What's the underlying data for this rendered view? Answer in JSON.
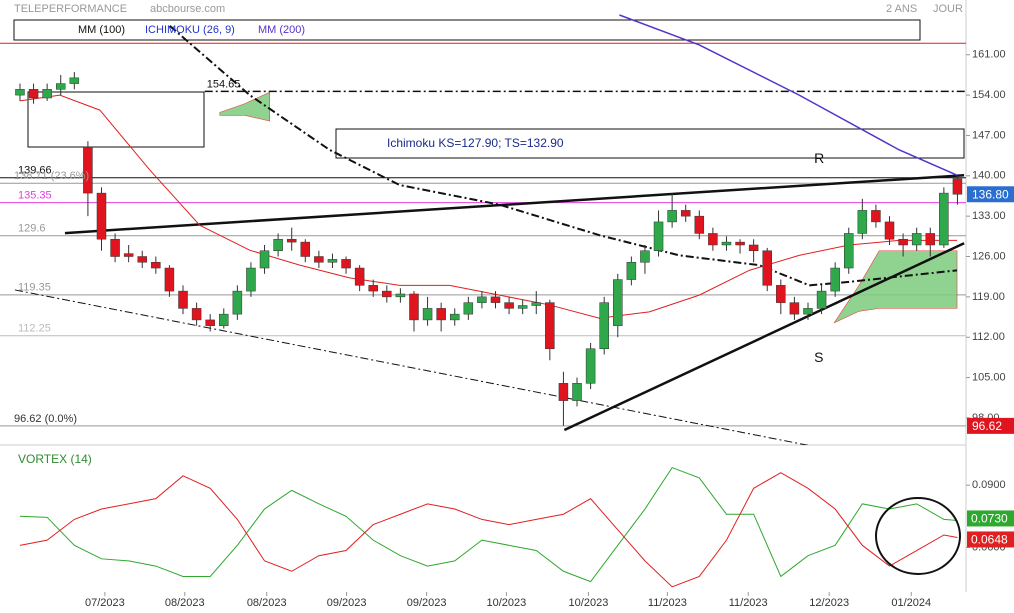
{
  "header": {
    "title": "TELEPERFORMANCE",
    "source": "abcbourse.com",
    "range": "2 ANS",
    "period": "JOUR"
  },
  "chart_data": [
    {
      "type": "candlestick",
      "up_color": "#2ea84a",
      "down_color": "#e0141e",
      "xlim": [
        -1.47,
        69.63
      ],
      "ylim": [
        93.3,
        170.5
      ],
      "yticks": [
        {
          "value": 161,
          "label": "161.00"
        },
        {
          "value": 154,
          "label": "154.00"
        },
        {
          "value": 147,
          "label": "147.00"
        },
        {
          "value": 140,
          "label": "140.00"
        },
        {
          "value": 133,
          "label": "133.00"
        },
        {
          "value": 126,
          "label": "126.00"
        },
        {
          "value": 119,
          "label": "119.00"
        },
        {
          "value": 112,
          "label": "112.00"
        },
        {
          "value": 105,
          "label": "105.00"
        },
        {
          "value": 98,
          "label": "98.00"
        }
      ],
      "xticks": [
        {
          "value": 6.25,
          "label": "07/2023"
        },
        {
          "value": 12.13,
          "label": "08/2023"
        },
        {
          "value": 18.16,
          "label": "08/2023"
        },
        {
          "value": 24.04,
          "label": "09/2023"
        },
        {
          "value": 29.93,
          "label": "09/2023"
        },
        {
          "value": 35.8,
          "label": "10/2023"
        },
        {
          "value": 41.84,
          "label": "10/2023"
        },
        {
          "value": 47.65,
          "label": "11/2023"
        },
        {
          "value": 53.6,
          "label": "11/2023"
        },
        {
          "value": 59.56,
          "label": "12/2023"
        },
        {
          "value": 65.6,
          "label": "01/2024"
        }
      ],
      "ohlc": [
        [
          154,
          156,
          153,
          155
        ],
        [
          155,
          156,
          152.5,
          153.5
        ],
        [
          153.5,
          156,
          153,
          155
        ],
        [
          155,
          157.5,
          154,
          156
        ],
        [
          156,
          158,
          155,
          157
        ],
        [
          145,
          146,
          133,
          137
        ],
        [
          137,
          138,
          127,
          129
        ],
        [
          129,
          130,
          125,
          126
        ],
        [
          126.5,
          128,
          125,
          126
        ],
        [
          126,
          127,
          124,
          125
        ],
        [
          125,
          126,
          123,
          124
        ],
        [
          124,
          124.5,
          119,
          120
        ],
        [
          120,
          121,
          116,
          117
        ],
        [
          117,
          118,
          114,
          115
        ],
        [
          115,
          116,
          113,
          114
        ],
        [
          114,
          117,
          113.5,
          116
        ],
        [
          116,
          121,
          115,
          120
        ],
        [
          120,
          125,
          119,
          124
        ],
        [
          124,
          128,
          123,
          127
        ],
        [
          127,
          130,
          126,
          129
        ],
        [
          129,
          131,
          127,
          128.5
        ],
        [
          128.5,
          129,
          125,
          126
        ],
        [
          126,
          127,
          124,
          125
        ],
        [
          125,
          126.5,
          124,
          125.5
        ],
        [
          125.5,
          126,
          123,
          124
        ],
        [
          124,
          124.5,
          120,
          121
        ],
        [
          121,
          122,
          119,
          120
        ],
        [
          120,
          121,
          118,
          119
        ],
        [
          119,
          120.5,
          118,
          119.5
        ],
        [
          119.5,
          120,
          113,
          115
        ],
        [
          115,
          119,
          114,
          117
        ],
        [
          117,
          118,
          113,
          115
        ],
        [
          115,
          117,
          114,
          116
        ],
        [
          116,
          119,
          115,
          118
        ],
        [
          118,
          120,
          117,
          119
        ],
        [
          119,
          120,
          117,
          118
        ],
        [
          118,
          119,
          116,
          117
        ],
        [
          117,
          118.5,
          116,
          117.5
        ],
        [
          117.5,
          120,
          116,
          118
        ],
        [
          118,
          118.5,
          108,
          110
        ],
        [
          104,
          106,
          96.62,
          101
        ],
        [
          101,
          105,
          100,
          104
        ],
        [
          104,
          111,
          103,
          110
        ],
        [
          110,
          119,
          109,
          118
        ],
        [
          114,
          123,
          112,
          122
        ],
        [
          122,
          126,
          121,
          125
        ],
        [
          125,
          128,
          123,
          127
        ],
        [
          127,
          134,
          126,
          132
        ],
        [
          132,
          137,
          131,
          134
        ],
        [
          134,
          135,
          132,
          133
        ],
        [
          133,
          134,
          129,
          130
        ],
        [
          130,
          131,
          127,
          128
        ],
        [
          128,
          129.5,
          127,
          128.5
        ],
        [
          128.5,
          129,
          126.5,
          128
        ],
        [
          128,
          129,
          125,
          127
        ],
        [
          127,
          127.5,
          120,
          121
        ],
        [
          121,
          122,
          116,
          118
        ],
        [
          118,
          119,
          115,
          116
        ],
        [
          116,
          118,
          115,
          117
        ],
        [
          117,
          121,
          116,
          120
        ],
        [
          120,
          125,
          119,
          124
        ],
        [
          124,
          131,
          123,
          130
        ],
        [
          130,
          136,
          129,
          134
        ],
        [
          134,
          135,
          131,
          132
        ],
        [
          132,
          133,
          128,
          129
        ],
        [
          129,
          130,
          126,
          128
        ],
        [
          128,
          131,
          127,
          130
        ],
        [
          130,
          131,
          126,
          128
        ],
        [
          128,
          138,
          127.5,
          137
        ],
        [
          139.5,
          140,
          135,
          136.8
        ]
      ],
      "close_label": "136.80",
      "series": [
        {
          "name": "MM (100)",
          "color": "#111111",
          "dash": "8 3 2 3",
          "width": 2,
          "x": [
            11.03,
            16.91,
            22.79,
            27.94,
            35.29,
            42.65,
            48.53,
            54.41,
            58.09,
            61.03,
            68.97
          ],
          "values": [
            166,
            154,
            144.5,
            138.4,
            135,
            129.7,
            126.2,
            124.5,
            121,
            121.6,
            123.6
          ]
        },
        {
          "name": "ICHIMOKU (26, 9)",
          "color": "#e02020",
          "legend_color": "#2233cc",
          "width": 1,
          "x": [
            0,
            2.94,
            5.88,
            9.56,
            13.24,
            16.91,
            20.59,
            24.26,
            27.94,
            31.62,
            35.29,
            38.97,
            42.65,
            46.32,
            50,
            53.68,
            57.35,
            61.03,
            64.71,
            68.97
          ],
          "values": [
            153,
            154,
            151.4,
            141,
            131.4,
            127.1,
            124.5,
            122.3,
            121,
            121,
            119.3,
            117.6,
            115.3,
            116.4,
            119.3,
            123.6,
            126.2,
            128,
            128.8,
            128.8
          ]
        },
        {
          "name": "MM (200)",
          "color": "#5533cc",
          "width": 1.5,
          "x": [
            44.12,
            50,
            57.35,
            64.71,
            68.97
          ],
          "values": [
            167.9,
            162.7,
            154,
            144.5,
            140.1
          ]
        }
      ],
      "cloud_color": "#7dcc7d",
      "clouds": [
        {
          "x": [
            14.71,
            16.54,
            18.38
          ],
          "upper": [
            151,
            152.5,
            154.5
          ],
          "lower": [
            150.5,
            150.5,
            149.5
          ]
        },
        {
          "x": [
            59.93,
            61.76,
            63.24,
            68.97
          ],
          "upper": [
            114.5,
            121,
            127,
            127
          ],
          "lower": [
            114.5,
            116.5,
            117,
            117
          ]
        }
      ],
      "trendlines": [
        {
          "label": "R",
          "x": [
            3.31,
            69.49
          ],
          "values": [
            130.06,
            140.1
          ]
        },
        {
          "label": "S",
          "x": [
            40.07,
            69.49
          ],
          "values": [
            95.9,
            128.3
          ]
        },
        {
          "x": [
            -0.37,
            59.19
          ],
          "values": [
            120.2,
            92.7
          ]
        }
      ],
      "levels": [
        {
          "value": 163,
          "color": "#e02020"
        },
        {
          "value": 154.65,
          "color": "#111111",
          "dash": "8 3 2 3",
          "from": 13.6,
          "show": true
        },
        {
          "value": 139.66,
          "color": "#111111",
          "show": true
        },
        {
          "value": 138.71,
          "label": "138.71 (23.6%)",
          "color": "#999999"
        },
        {
          "value": 135.35,
          "color": "#e040e0",
          "show": true
        },
        {
          "value": 129.6,
          "color": "#999999",
          "show": true
        },
        {
          "value": 119.35,
          "color": "#999999",
          "show": true
        },
        {
          "value": 112.25,
          "color": "#bbbbbb",
          "show": true
        },
        {
          "value": 96.62,
          "label": "96.62 (0.0%)",
          "color": "#999999",
          "tag": true
        }
      ],
      "annotation": "Ichimoku KS=127.90; TS=132.90"
    },
    {
      "type": "line",
      "title": "VORTEX (14)",
      "xlim": [
        -1.47,
        69.63
      ],
      "ylim": [
        0.0385,
        0.106
      ],
      "yticks": [
        {
          "value": 0.09,
          "label": "0.0900"
        },
        {
          "value": 0.06,
          "label": "0.0600"
        }
      ],
      "series": [
        {
          "color": "#2ea82e",
          "x": [
            0,
            2,
            4,
            6,
            8,
            10,
            12,
            14,
            16,
            18,
            20,
            22,
            24,
            26,
            28,
            30,
            32,
            34,
            36,
            38,
            40,
            42,
            44,
            46,
            48,
            50,
            52,
            54,
            56,
            58,
            60,
            62,
            64,
            66,
            68,
            69
          ],
          "values": [
            0.075,
            0.0745,
            0.061,
            0.0545,
            0.0535,
            0.051,
            0.046,
            0.046,
            0.061,
            0.0785,
            0.0875,
            0.081,
            0.075,
            0.0635,
            0.056,
            0.051,
            0.0535,
            0.0635,
            0.061,
            0.0585,
            0.0485,
            0.0435,
            0.061,
            0.0785,
            0.0985,
            0.0935,
            0.076,
            0.076,
            0.046,
            0.056,
            0.061,
            0.081,
            0.0785,
            0.081,
            0.0735,
            0.073
          ],
          "tag_label": "0.0730"
        },
        {
          "color": "#e02020",
          "x": [
            0,
            2,
            4,
            6,
            8,
            10,
            12,
            14,
            16,
            18,
            20,
            22,
            24,
            26,
            28,
            30,
            32,
            34,
            36,
            38,
            40,
            42,
            44,
            46,
            48,
            50,
            52,
            54,
            56,
            58,
            60,
            62,
            64,
            66,
            68,
            69
          ],
          "values": [
            0.061,
            0.0635,
            0.0735,
            0.0785,
            0.081,
            0.0835,
            0.0945,
            0.0885,
            0.0735,
            0.0535,
            0.0485,
            0.056,
            0.0585,
            0.071,
            0.076,
            0.081,
            0.0785,
            0.0735,
            0.071,
            0.0735,
            0.076,
            0.0835,
            0.0685,
            0.0535,
            0.041,
            0.046,
            0.0635,
            0.0885,
            0.096,
            0.0885,
            0.0785,
            0.061,
            0.051,
            0.0585,
            0.066,
            0.0648
          ],
          "tag_label": "0.0648"
        }
      ]
    }
  ]
}
